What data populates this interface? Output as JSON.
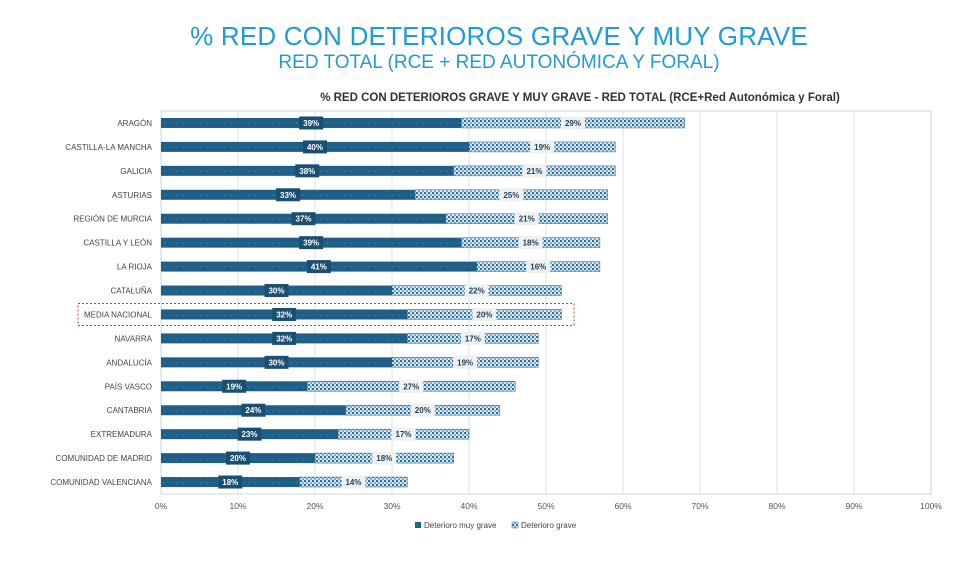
{
  "page": {
    "title": "% RED CON DETERIOROS GRAVE Y MUY GRAVE",
    "subtitle": "RED TOTAL (RCE + RED AUTONÓMICA Y FORAL)"
  },
  "colors": {
    "muy_grave": "#1f5f87",
    "grave_fill": "#cfe3ef",
    "grave_pattern": "#2c6e98",
    "title": "#1f9bd7",
    "highlight_border": "#e03030"
  },
  "chart_data": {
    "type": "bar",
    "orientation": "horizontal",
    "stacked": true,
    "title": "% RED CON DETERIOROS GRAVE Y MUY GRAVE  - RED TOTAL (RCE+Red Autonómica y Foral)",
    "categories": [
      "ARAGÓN",
      "CASTILLA-LA MANCHA",
      "GALICIA",
      "ASTURIAS",
      "REGIÓN DE MURCIA",
      "CASTILLA Y LEÓN",
      "LA RIOJA",
      "CATALUÑA",
      "MEDIA NACIONAL",
      "NAVARRA",
      "ANDALUCÍA",
      "PAÍS VASCO",
      "CANTABRIA",
      "EXTREMADURA",
      "COMUNIDAD DE MADRID",
      "COMUNIDAD VALENCIANA"
    ],
    "series": [
      {
        "name": "Deterioro muy grave",
        "values": [
          39,
          40,
          38,
          33,
          37,
          39,
          41,
          30,
          32,
          32,
          30,
          19,
          24,
          23,
          20,
          18
        ],
        "labels": [
          "39%",
          "40%",
          "38%",
          "33%",
          "37%",
          "39%",
          "41%",
          "30%",
          "32%",
          "32%",
          "30%",
          "19%",
          "24%",
          "23%",
          "20%",
          "18%"
        ]
      },
      {
        "name": "Deterioro grave",
        "values": [
          29,
          19,
          21,
          25,
          21,
          18,
          16,
          22,
          20,
          17,
          19,
          27,
          20,
          17,
          18,
          14
        ],
        "labels": [
          "29%",
          "19%",
          "21%",
          "25%",
          "21%",
          "18%",
          "16%",
          "22%",
          "20%",
          "17%",
          "19%",
          "27%",
          "20%",
          "17%",
          "18%",
          "14%"
        ]
      }
    ],
    "xlim": [
      0,
      100
    ],
    "xticks": [
      "0%",
      "10%",
      "20%",
      "30%",
      "40%",
      "50%",
      "60%",
      "70%",
      "80%",
      "90%",
      "100%"
    ],
    "grid": true,
    "legend_position": "bottom",
    "highlighted_category": "MEDIA NACIONAL"
  }
}
